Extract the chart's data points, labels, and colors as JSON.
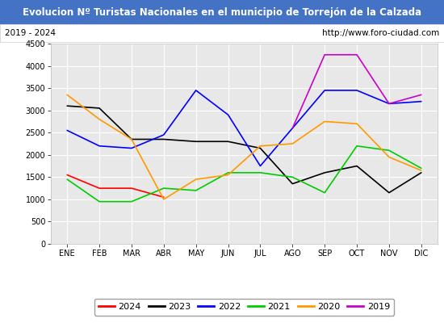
{
  "title": "Evolucion Nº Turistas Nacionales en el municipio de Torrejón de la Calzada",
  "subtitle_left": "2019 - 2024",
  "subtitle_right": "http://www.foro-ciudad.com",
  "months": [
    "ENE",
    "FEB",
    "MAR",
    "ABR",
    "MAY",
    "JUN",
    "JUL",
    "AGO",
    "SEP",
    "OCT",
    "NOV",
    "DIC"
  ],
  "series": {
    "2024": {
      "color": "#ff0000",
      "data": [
        1550,
        1250,
        1250,
        1050,
        null,
        null,
        null,
        null,
        null,
        null,
        null,
        null
      ]
    },
    "2023": {
      "color": "#000000",
      "data": [
        3100,
        3050,
        2350,
        2350,
        2300,
        2300,
        2150,
        1350,
        1600,
        1750,
        1150,
        1600
      ]
    },
    "2022": {
      "color": "#0000ff",
      "data": [
        2550,
        2200,
        2150,
        2450,
        3450,
        2900,
        1750,
        2600,
        3450,
        3450,
        3150,
        3200
      ]
    },
    "2021": {
      "color": "#00cc00",
      "data": [
        1450,
        950,
        950,
        1250,
        1200,
        1600,
        1600,
        1500,
        1150,
        2200,
        2100,
        1700
      ]
    },
    "2020": {
      "color": "#ff9900",
      "data": [
        3350,
        2800,
        2350,
        1000,
        1450,
        1550,
        2200,
        2250,
        2750,
        2700,
        1950,
        1650
      ]
    },
    "2019": {
      "color": "#cc00cc",
      "data": [
        null,
        null,
        null,
        null,
        null,
        null,
        null,
        2600,
        4250,
        4250,
        3150,
        3350
      ]
    }
  },
  "ylim": [
    0,
    4500
  ],
  "yticks": [
    0,
    500,
    1000,
    1500,
    2000,
    2500,
    3000,
    3500,
    4000,
    4500
  ],
  "title_bg_color": "#4472c4",
  "title_fg_color": "#ffffff",
  "plot_bg_color": "#e8e8e8",
  "grid_color": "#ffffff",
  "border_color": "#aaaaaa",
  "fig_width": 5.5,
  "fig_height": 4.0,
  "fig_dpi": 100
}
